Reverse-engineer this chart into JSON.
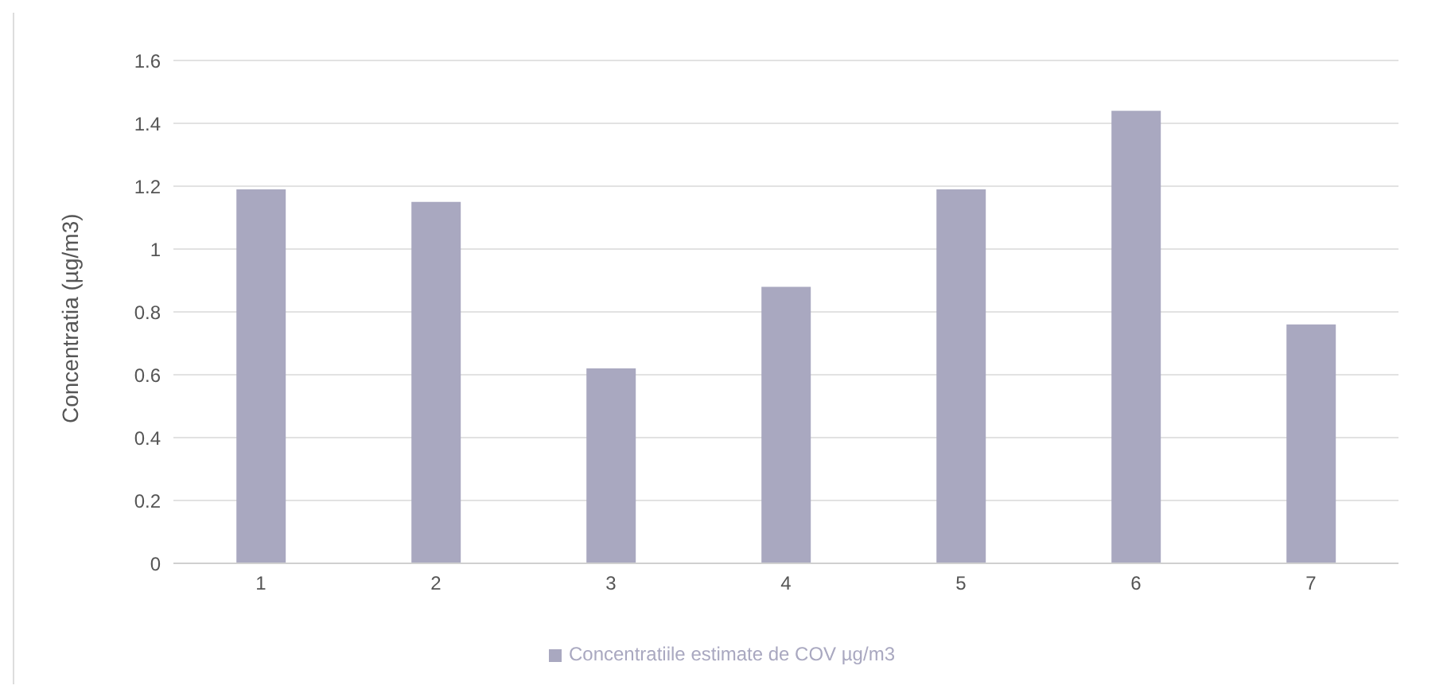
{
  "chart_data": {
    "type": "bar",
    "ylabel": "Concentratia (µg/m3)",
    "categories": [
      "1",
      "2",
      "3",
      "4",
      "5",
      "6",
      "7"
    ],
    "series": [
      {
        "name": "Concentratiile estimate de COV µg/m3",
        "color": "#a9a8c0",
        "values": [
          1.19,
          1.15,
          0.62,
          0.88,
          1.19,
          1.44,
          0.76
        ]
      }
    ],
    "ylim": [
      0,
      1.6
    ],
    "yticks": [
      0,
      0.2,
      0.4,
      0.6,
      0.8,
      1,
      1.2,
      1.4,
      1.6
    ],
    "grid": "y",
    "legend": "bottom"
  }
}
